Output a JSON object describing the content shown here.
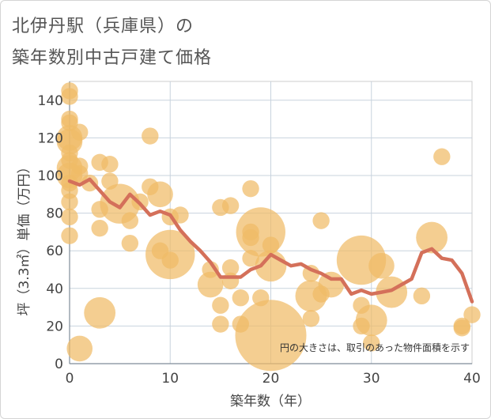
{
  "chart_data": {
    "type": "scatter",
    "title_line1": "北伊丹駅（兵庫県）の",
    "title_line2": "築年数別中古戸建て価格",
    "xlabel": "築年数（年）",
    "ylabel": "坪（3.3㎡）単価（万円）",
    "xlim": [
      0,
      40
    ],
    "ylim": [
      0,
      150
    ],
    "xticks": [
      0,
      10,
      20,
      30,
      40
    ],
    "yticks": [
      0,
      20,
      40,
      60,
      80,
      100,
      120,
      140
    ],
    "note": "円の大きさは、取引のあった物件面積を示す",
    "bubble_color": "#f0bb66",
    "line_color": "#d4705a",
    "points": [
      {
        "x": 0,
        "y": 145,
        "s": 1
      },
      {
        "x": 0,
        "y": 142,
        "s": 1
      },
      {
        "x": 0,
        "y": 130,
        "s": 1
      },
      {
        "x": 0,
        "y": 128,
        "s": 1
      },
      {
        "x": 0,
        "y": 120,
        "s": 2
      },
      {
        "x": 0,
        "y": 118,
        "s": 2
      },
      {
        "x": 0,
        "y": 112,
        "s": 1
      },
      {
        "x": 0,
        "y": 108,
        "s": 1
      },
      {
        "x": 0,
        "y": 104,
        "s": 2
      },
      {
        "x": 0,
        "y": 100,
        "s": 2
      },
      {
        "x": 0,
        "y": 96,
        "s": 1
      },
      {
        "x": 0,
        "y": 92,
        "s": 1
      },
      {
        "x": 0,
        "y": 86,
        "s": 1
      },
      {
        "x": 0,
        "y": 78,
        "s": 1
      },
      {
        "x": 0,
        "y": 68,
        "s": 1
      },
      {
        "x": 1,
        "y": 123,
        "s": 1
      },
      {
        "x": 1,
        "y": 105,
        "s": 1
      },
      {
        "x": 1,
        "y": 101,
        "s": 1
      },
      {
        "x": 1,
        "y": 8,
        "s": 2
      },
      {
        "x": 2,
        "y": 96,
        "s": 1
      },
      {
        "x": 3,
        "y": 107,
        "s": 1
      },
      {
        "x": 3,
        "y": 82,
        "s": 1
      },
      {
        "x": 3,
        "y": 72,
        "s": 1
      },
      {
        "x": 3,
        "y": 27,
        "s": 3
      },
      {
        "x": 4,
        "y": 106,
        "s": 1
      },
      {
        "x": 4,
        "y": 97,
        "s": 1
      },
      {
        "x": 5,
        "y": 85,
        "s": 5
      },
      {
        "x": 6,
        "y": 76,
        "s": 1
      },
      {
        "x": 6,
        "y": 64,
        "s": 1
      },
      {
        "x": 7,
        "y": 86,
        "s": 1
      },
      {
        "x": 8,
        "y": 121,
        "s": 1
      },
      {
        "x": 8,
        "y": 94,
        "s": 1
      },
      {
        "x": 9,
        "y": 90,
        "s": 2
      },
      {
        "x": 9,
        "y": 60,
        "s": 1
      },
      {
        "x": 10,
        "y": 78,
        "s": 1
      },
      {
        "x": 10,
        "y": 58,
        "s": 8
      },
      {
        "x": 10,
        "y": 55,
        "s": 1
      },
      {
        "x": 11,
        "y": 79,
        "s": 1
      },
      {
        "x": 14,
        "y": 50,
        "s": 1
      },
      {
        "x": 14,
        "y": 42,
        "s": 2
      },
      {
        "x": 15,
        "y": 83,
        "s": 1
      },
      {
        "x": 15,
        "y": 31,
        "s": 1
      },
      {
        "x": 15,
        "y": 21,
        "s": 1
      },
      {
        "x": 16,
        "y": 84,
        "s": 1
      },
      {
        "x": 16,
        "y": 51,
        "s": 1
      },
      {
        "x": 16,
        "y": 44,
        "s": 1
      },
      {
        "x": 17,
        "y": 35,
        "s": 1
      },
      {
        "x": 17,
        "y": 21,
        "s": 1
      },
      {
        "x": 18,
        "y": 93,
        "s": 1
      },
      {
        "x": 18,
        "y": 70,
        "s": 1
      },
      {
        "x": 18,
        "y": 67,
        "s": 1
      },
      {
        "x": 18,
        "y": 56,
        "s": 1
      },
      {
        "x": 19,
        "y": 70,
        "s": 8
      },
      {
        "x": 19,
        "y": 35,
        "s": 1
      },
      {
        "x": 20,
        "y": 63,
        "s": 1
      },
      {
        "x": 20,
        "y": 52,
        "s": 3
      },
      {
        "x": 20,
        "y": 15,
        "s": 18
      },
      {
        "x": 24,
        "y": 48,
        "s": 1
      },
      {
        "x": 24,
        "y": 36,
        "s": 3
      },
      {
        "x": 24,
        "y": 24,
        "s": 1
      },
      {
        "x": 25,
        "y": 76,
        "s": 1
      },
      {
        "x": 25,
        "y": 37,
        "s": 1
      },
      {
        "x": 26,
        "y": 42,
        "s": 2
      },
      {
        "x": 29,
        "y": 55,
        "s": 8
      },
      {
        "x": 29,
        "y": 31,
        "s": 1
      },
      {
        "x": 29,
        "y": 20,
        "s": 1
      },
      {
        "x": 30,
        "y": 23,
        "s": 3
      },
      {
        "x": 30,
        "y": 11,
        "s": 1
      },
      {
        "x": 31,
        "y": 52,
        "s": 2
      },
      {
        "x": 32,
        "y": 38,
        "s": 3
      },
      {
        "x": 35,
        "y": 36,
        "s": 1
      },
      {
        "x": 36,
        "y": 67,
        "s": 3
      },
      {
        "x": 37,
        "y": 110,
        "s": 1
      },
      {
        "x": 39,
        "y": 20,
        "s": 1
      },
      {
        "x": 39,
        "y": 19,
        "s": 1
      },
      {
        "x": 40,
        "y": 26,
        "s": 1
      }
    ],
    "series": [
      {
        "name": "average",
        "x": [
          0,
          1,
          2,
          3,
          4,
          5,
          6,
          7,
          8,
          9,
          10,
          11,
          12,
          13,
          14,
          15,
          16,
          17,
          18,
          19,
          20,
          21,
          22,
          23,
          24,
          25,
          26,
          27,
          28,
          29,
          30,
          31,
          32,
          33,
          34,
          35,
          36,
          37,
          38,
          39,
          40
        ],
        "values": [
          97,
          95,
          98,
          92,
          86,
          83,
          90,
          85,
          79,
          81,
          79,
          71,
          65,
          60,
          54,
          46,
          46,
          46,
          50,
          52,
          58,
          55,
          52,
          53,
          50,
          48,
          45,
          45,
          37,
          39,
          37,
          38,
          39,
          42,
          45,
          59,
          61,
          56,
          55,
          48,
          33
        ]
      }
    ]
  }
}
